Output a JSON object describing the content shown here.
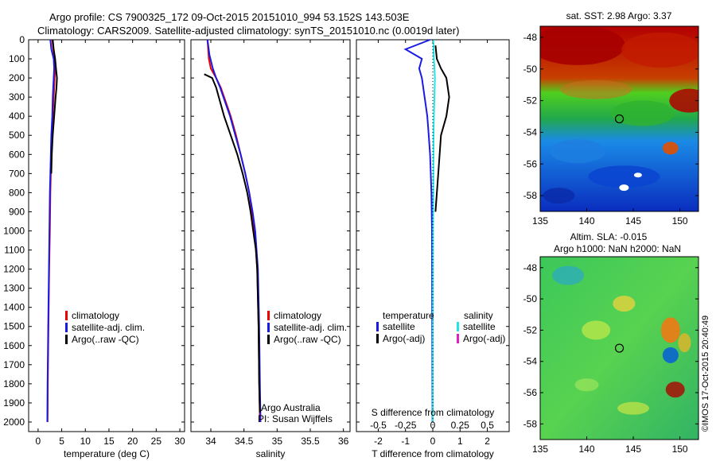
{
  "header": {
    "title_line1": "Argo profile: CS 7900325_172 09-Oct-2015 20151010_994 53.152S 143.503E",
    "title_line2": "Climatology: CARS2009. Satellite-adjusted climatology: synTS_20151010.nc (0.0019d later)"
  },
  "colors": {
    "climatology": "#ee0000",
    "satellite": "#1a1ae6",
    "argo": "#000000",
    "satellite_salinity": "#22e6e6",
    "argo_adj_salinity": "#e020c0"
  },
  "watermark": "©IMOS 17-Oct-2015 20:40:49",
  "annotations": {
    "argo_australia": "Argo Australia",
    "pi": "PI: Susan Wijffels"
  },
  "chart_data": [
    {
      "type": "line",
      "panel": "temperature",
      "xlabel": "temperature (deg C)",
      "ylabel": "",
      "xlim": [
        -2,
        31
      ],
      "ylim": [
        2050,
        0
      ],
      "xticks": [
        0,
        5,
        10,
        15,
        20,
        25,
        30
      ],
      "yticks": [
        0,
        100,
        200,
        300,
        400,
        500,
        600,
        700,
        800,
        900,
        1000,
        1100,
        1200,
        1300,
        1400,
        1500,
        1600,
        1700,
        1800,
        1900,
        2000
      ],
      "legend": [
        "climatology",
        "satellite-adj. clim.",
        "Argo(..raw -QC)"
      ],
      "series": [
        {
          "name": "climatology",
          "color": "#ee0000",
          "depth": [
            0,
            50,
            100,
            150,
            200,
            300,
            400,
            500,
            600,
            700,
            800,
            1000,
            1200,
            1500,
            1800,
            2000
          ],
          "values": [
            3.0,
            3.2,
            3.5,
            3.6,
            3.5,
            3.3,
            3.1,
            2.9,
            2.8,
            2.7,
            2.6,
            2.5,
            2.35,
            2.2,
            2.05,
            2.0
          ]
        },
        {
          "name": "satellite-adj. clim.",
          "color": "#1a1ae6",
          "depth": [
            0,
            50,
            100,
            150,
            200,
            300,
            400,
            500,
            600,
            700,
            800,
            1000,
            1200,
            1500,
            1800,
            2000
          ],
          "values": [
            2.6,
            2.8,
            3.3,
            3.4,
            3.3,
            3.1,
            3.0,
            2.8,
            2.7,
            2.6,
            2.5,
            2.4,
            2.3,
            2.15,
            2.0,
            1.95
          ]
        },
        {
          "name": "Argo(..raw -QC)",
          "color": "#000000",
          "depth": [
            0,
            50,
            100,
            150,
            200,
            250,
            300,
            400,
            500,
            600,
            700
          ],
          "values": [
            3.1,
            3.3,
            3.6,
            3.8,
            4.0,
            3.9,
            3.7,
            3.4,
            3.1,
            2.9,
            2.8
          ]
        }
      ]
    },
    {
      "type": "line",
      "panel": "salinity",
      "xlabel": "salinity",
      "ylabel": "",
      "xlim": [
        33.7,
        36.1
      ],
      "ylim": [
        2050,
        0
      ],
      "xticks": [
        34,
        34.5,
        35,
        35.5,
        36
      ],
      "legend": [
        "climatology",
        "satellite-adj. clim.",
        "Argo(..raw -QC)"
      ],
      "series": [
        {
          "name": "climatology",
          "color": "#ee0000",
          "depth": [
            0,
            100,
            150,
            200,
            250,
            300,
            400,
            500,
            600,
            700,
            800,
            900,
            1000,
            1200,
            1500,
            1800,
            2000
          ],
          "values": [
            33.95,
            33.97,
            34.0,
            34.08,
            34.15,
            34.2,
            34.3,
            34.38,
            34.45,
            34.52,
            34.58,
            34.62,
            34.66,
            34.7,
            34.72,
            34.73,
            34.74
          ]
        },
        {
          "name": "satellite-adj. clim.",
          "color": "#1a1ae6",
          "depth": [
            0,
            80,
            150,
            200,
            250,
            300,
            400,
            500,
            600,
            700,
            800,
            900,
            1000,
            1200,
            1500,
            1800,
            2000
          ],
          "values": [
            33.95,
            33.98,
            34.03,
            34.08,
            34.14,
            34.19,
            34.29,
            34.37,
            34.45,
            34.52,
            34.58,
            34.63,
            34.67,
            34.71,
            34.73,
            34.74,
            34.75
          ]
        },
        {
          "name": "Argo(..raw -QC)",
          "color": "#000000",
          "depth": [
            180,
            200,
            250,
            300,
            400,
            500,
            600,
            700,
            800,
            900,
            1000,
            1100,
            1200,
            1500,
            1800,
            1950
          ],
          "values": [
            33.9,
            34.02,
            34.08,
            34.12,
            34.2,
            34.3,
            34.4,
            34.48,
            34.55,
            34.6,
            34.64,
            34.68,
            34.7,
            34.72,
            34.73,
            34.74
          ]
        }
      ]
    },
    {
      "type": "line",
      "panel": "difference",
      "xlabel": "T difference from climatology",
      "xlabel_top": "S difference from climatology",
      "xlim": [
        -2.8,
        2.8
      ],
      "ylim": [
        2050,
        0
      ],
      "xticks": [
        -2,
        -1,
        0,
        1,
        2
      ],
      "xticks_s": [
        -0.5,
        -0.25,
        0,
        0.25,
        0.5
      ],
      "legend_left_title": "temperature",
      "legend_right_title": "salinity",
      "legend": [
        "satellite",
        "Argo(-adj)",
        "satellite",
        "Argo(-adj)"
      ],
      "series": [
        {
          "name": "satellite",
          "color": "#1a1ae6",
          "depth": [
            0,
            50,
            100,
            150,
            200,
            300,
            400,
            500,
            600,
            800,
            1000,
            1500,
            2000
          ],
          "values": [
            -0.1,
            -1.0,
            -0.4,
            -0.5,
            -0.4,
            -0.3,
            -0.2,
            -0.15,
            -0.1,
            -0.05,
            -0.03,
            -0.02,
            -0.01
          ]
        },
        {
          "name": "satellite",
          "color": "#22e6e6",
          "depth": [
            0,
            50,
            100,
            150,
            200,
            300,
            400,
            500,
            800,
            1000,
            1500,
            2000
          ],
          "values": [
            0.02,
            0.03,
            0.04,
            0.06,
            0.08,
            0.06,
            0.04,
            0.03,
            0.02,
            0.01,
            0.0,
            0.0
          ]
        },
        {
          "name": "Argo(-adj)",
          "color": "#000000",
          "depth": [
            30,
            100,
            150,
            200,
            300,
            400,
            500,
            700,
            900
          ],
          "values": [
            0.1,
            0.15,
            0.3,
            0.5,
            0.6,
            0.5,
            0.3,
            0.2,
            0.1
          ]
        }
      ]
    },
    {
      "type": "heatmap",
      "panel": "sst_map",
      "title": "sat. SST: 2.98  Argo: 3.37",
      "xlim": [
        135,
        152
      ],
      "ylim": [
        -59,
        -47.3
      ],
      "xticks": [
        135,
        140,
        145,
        150
      ],
      "yticks": [
        -48,
        -50,
        -52,
        -54,
        -56,
        -58
      ],
      "marker": {
        "lon": 143.503,
        "lat": -53.152
      }
    },
    {
      "type": "heatmap",
      "panel": "sla_map",
      "title_line1": "Altim. SLA: -0.015",
      "title_line2": "Argo h1000: NaN  h2000: NaN",
      "xlim": [
        135,
        152
      ],
      "ylim": [
        -59,
        -47.3
      ],
      "xticks": [
        135,
        140,
        145,
        150
      ],
      "yticks": [
        -48,
        -50,
        -52,
        -54,
        -56,
        -58
      ],
      "marker": {
        "lon": 143.503,
        "lat": -53.152
      }
    }
  ]
}
